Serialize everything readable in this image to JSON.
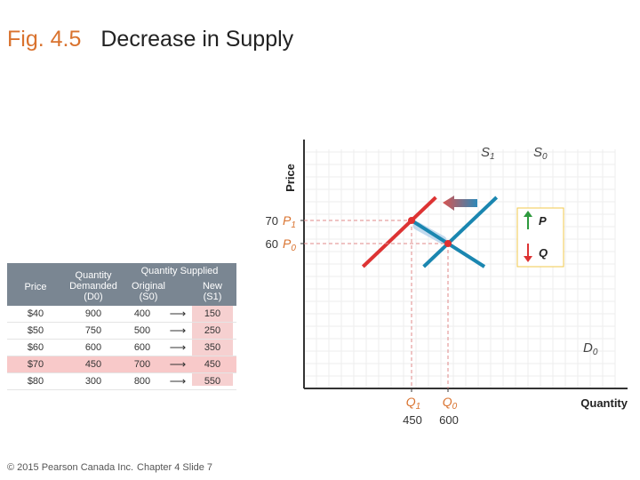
{
  "title": {
    "fig": "Fig. 4.5",
    "text": "Decrease in Supply"
  },
  "footer": {
    "copyright": "© 2015 Pearson Canada Inc.",
    "slide": "Chapter 4 Slide 7"
  },
  "chart_data": {
    "type": "line",
    "xlabel": "Quantity",
    "ylabel": "Price",
    "series": [
      {
        "name": "S1",
        "color": "#dd3333",
        "points": [
          [
            250,
            50
          ],
          [
            450,
            70
          ],
          [
            550,
            80
          ]
        ]
      },
      {
        "name": "S0",
        "color": "#1a86b0",
        "points": [
          [
            500,
            50
          ],
          [
            600,
            60
          ],
          [
            800,
            80
          ]
        ]
      },
      {
        "name": "D0",
        "color": "#1a86b0",
        "points": [
          [
            750,
            50
          ],
          [
            600,
            60
          ],
          [
            450,
            70
          ]
        ]
      }
    ],
    "equilibria": [
      {
        "price": 70,
        "price_label": "P",
        "price_sub": "1",
        "quantity": 450,
        "quantity_label": "Q",
        "quantity_sub": "1"
      },
      {
        "price": 60,
        "price_label": "P",
        "price_sub": "0",
        "quantity": 600,
        "quantity_label": "Q",
        "quantity_sub": "0"
      }
    ],
    "effects": [
      {
        "label": "P",
        "direction": "up",
        "color": "#2e9a3e"
      },
      {
        "label": "Q",
        "direction": "down",
        "color": "#dd3333"
      }
    ],
    "curve_labels": [
      {
        "name": "S",
        "sub": "1"
      },
      {
        "name": "S",
        "sub": "0"
      },
      {
        "name": "D",
        "sub": "0"
      }
    ]
  },
  "table": {
    "headers": {
      "price": "Price",
      "qd": [
        "Quantity",
        "Demanded",
        "(D0)"
      ],
      "qs": "Quantity Supplied",
      "original": [
        "Original",
        "(S0)"
      ],
      "new": [
        "New",
        "(S1)"
      ]
    },
    "rows": [
      {
        "price": "$40",
        "qd": "900",
        "orig": "400",
        "new": "150",
        "highlight": false
      },
      {
        "price": "$50",
        "qd": "750",
        "orig": "500",
        "new": "250",
        "highlight": false
      },
      {
        "price": "$60",
        "qd": "600",
        "orig": "600",
        "new": "350",
        "highlight": false
      },
      {
        "price": "$70",
        "qd": "450",
        "orig": "700",
        "new": "450",
        "highlight": true
      },
      {
        "price": "$80",
        "qd": "300",
        "orig": "800",
        "new": "550",
        "highlight": false
      }
    ]
  }
}
